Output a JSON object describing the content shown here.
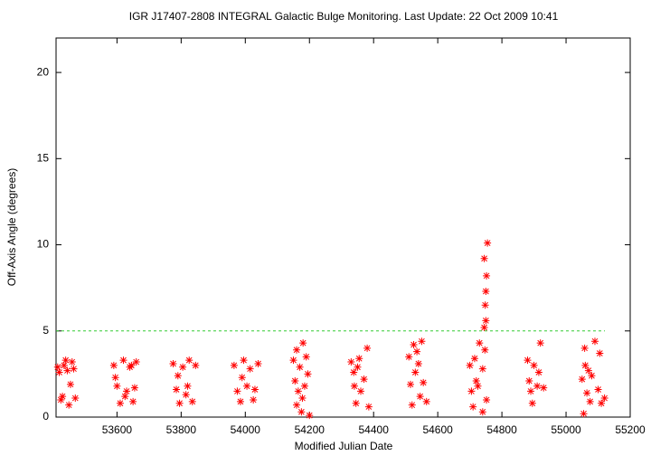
{
  "chart_data": {
    "type": "scatter",
    "title": "IGR J17407-2808   INTEGRAL Galactic Bulge Monitoring.  Last Update: 22 Oct 2009 10:41",
    "x_label": "Modified Julian Date",
    "y_label": "Off-Axis Angle (degrees)",
    "xlim": [
      53410,
      55200
    ],
    "ylim": [
      0,
      22
    ],
    "xticks": [
      53600,
      53800,
      54000,
      54200,
      54400,
      54600,
      54800,
      55000,
      55200
    ],
    "yticks": [
      0,
      5,
      10,
      15,
      20
    ],
    "threshold": 5,
    "threshold_color": "#33cc33",
    "series": [
      {
        "color": "#ff0000",
        "x": [
          53415,
          53420,
          53425,
          53430,
          53435,
          53440,
          53445,
          53450,
          53455,
          53460,
          53465,
          53470,
          53590,
          53600,
          53610,
          53620,
          53630,
          53640,
          53650,
          53660,
          53595,
          53625,
          53655,
          53645,
          53775,
          53785,
          53795,
          53805,
          53815,
          53825,
          53835,
          53845,
          53790,
          53820,
          53965,
          53975,
          53985,
          53995,
          54005,
          54015,
          54025,
          54040,
          53990,
          54030,
          54150,
          54155,
          54160,
          54165,
          54170,
          54175,
          54180,
          54185,
          54190,
          54195,
          54200,
          54160,
          54178,
          54330,
          54340,
          54345,
          54350,
          54355,
          54360,
          54370,
          54380,
          54385,
          54338,
          54510,
          54515,
          54520,
          54525,
          54530,
          54540,
          54545,
          54550,
          54555,
          54565,
          54535,
          54700,
          54705,
          54710,
          54715,
          54720,
          54730,
          54740,
          54745,
          54748,
          54750,
          54752,
          54755,
          54745,
          54750,
          54747,
          54752,
          54740,
          54725,
          54880,
          54885,
          54890,
          54900,
          54910,
          54915,
          54920,
          54930,
          54895,
          55050,
          55055,
          55060,
          55065,
          55070,
          55075,
          55080,
          55090,
          55100,
          55105,
          55110,
          55120,
          55058
        ],
        "values": [
          2.9,
          2.6,
          1.0,
          1.2,
          3.0,
          3.3,
          2.7,
          0.7,
          1.9,
          3.2,
          2.8,
          1.1,
          3.0,
          1.8,
          0.8,
          3.3,
          1.5,
          2.9,
          0.9,
          3.2,
          2.3,
          1.2,
          1.7,
          3.0,
          3.1,
          1.6,
          0.8,
          2.9,
          1.3,
          3.3,
          0.9,
          3.0,
          2.4,
          1.8,
          3.0,
          1.5,
          0.9,
          3.3,
          1.8,
          2.8,
          1.0,
          3.1,
          2.3,
          1.6,
          3.3,
          2.1,
          0.7,
          1.5,
          2.9,
          0.3,
          4.3,
          1.8,
          3.5,
          2.5,
          0.1,
          3.9,
          1.1,
          3.2,
          1.8,
          0.8,
          2.9,
          3.4,
          1.5,
          2.2,
          4.0,
          0.6,
          2.6,
          3.5,
          1.9,
          0.7,
          4.2,
          2.6,
          3.1,
          1.2,
          4.4,
          2.0,
          0.9,
          3.8,
          3.0,
          1.5,
          0.6,
          3.4,
          2.1,
          4.3,
          2.8,
          5.2,
          6.5,
          7.3,
          8.2,
          10.1,
          9.2,
          5.6,
          3.9,
          1.0,
          0.3,
          1.8,
          3.3,
          2.1,
          1.5,
          3.0,
          1.8,
          2.6,
          4.3,
          1.7,
          0.8,
          2.2,
          0.2,
          3.0,
          1.4,
          2.7,
          0.9,
          2.4,
          4.4,
          1.6,
          3.7,
          0.8,
          1.1,
          4.0
        ]
      }
    ]
  }
}
